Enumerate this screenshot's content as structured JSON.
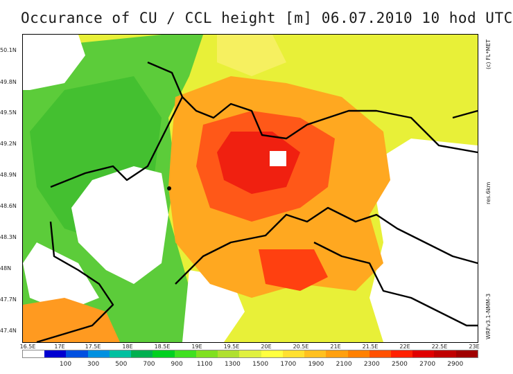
{
  "title": "Occurance of CU / CCL height [m]   06.07.2010  10 hod UTC",
  "copyright": "(c) FL*MET",
  "resolution": "res.6km",
  "model": "WRFv3.1-NMM-3",
  "latitude_labels": [
    "50.1N",
    "49.8N",
    "49.5N",
    "49.2N",
    "48.9N",
    "48.6N",
    "48.3N",
    "48N",
    "47.7N",
    "47.4N"
  ],
  "longitude_labels": [
    "16.5E",
    "17E",
    "17.5E",
    "18E",
    "18.5E",
    "19E",
    "19.5E",
    "20E",
    "20.5E",
    "21E",
    "21.5E",
    "22E",
    "22.5E",
    "23E"
  ],
  "colorbar": {
    "labels": [
      "100",
      "300",
      "500",
      "700",
      "900",
      "1100",
      "1300",
      "1500",
      "1700",
      "1900",
      "2100",
      "2300",
      "2500",
      "2700",
      "2900"
    ],
    "colors": [
      "#ffffff",
      "#0000d0",
      "#0050e0",
      "#0090e0",
      "#00c0a0",
      "#00b050",
      "#00d020",
      "#40e020",
      "#80e020",
      "#b0e030",
      "#e0f040",
      "#ffff40",
      "#ffe030",
      "#ffc020",
      "#ffa010",
      "#ff8000",
      "#ff5000",
      "#ff2000",
      "#e00000",
      "#c00000",
      "#a00000"
    ]
  }
}
